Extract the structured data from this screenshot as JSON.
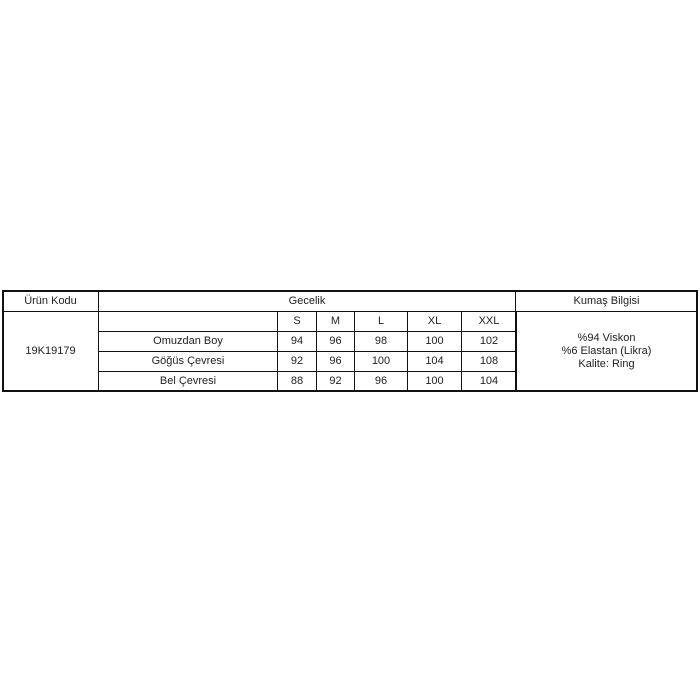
{
  "table": {
    "headers": {
      "product_code": "Ürün Kodu",
      "product_type": "Gecelik",
      "fabric_info": "Kumaş Bilgisi"
    },
    "product_code": "19K19179",
    "sizes": [
      "S",
      "M",
      "L",
      "XL",
      "XXL"
    ],
    "rows": [
      {
        "label": "Omuzdan Boy",
        "values": [
          "94",
          "96",
          "98",
          "100",
          "102"
        ]
      },
      {
        "label": "Göğüs Çevresi",
        "values": [
          "92",
          "96",
          "100",
          "104",
          "108"
        ]
      },
      {
        "label": "Bel Çevresi",
        "values": [
          "88",
          "92",
          "96",
          "100",
          "104"
        ]
      }
    ],
    "fabric_lines": [
      "%94 Viskon",
      "%6 Elastan (Likra)",
      "Kalite: Ring"
    ]
  }
}
